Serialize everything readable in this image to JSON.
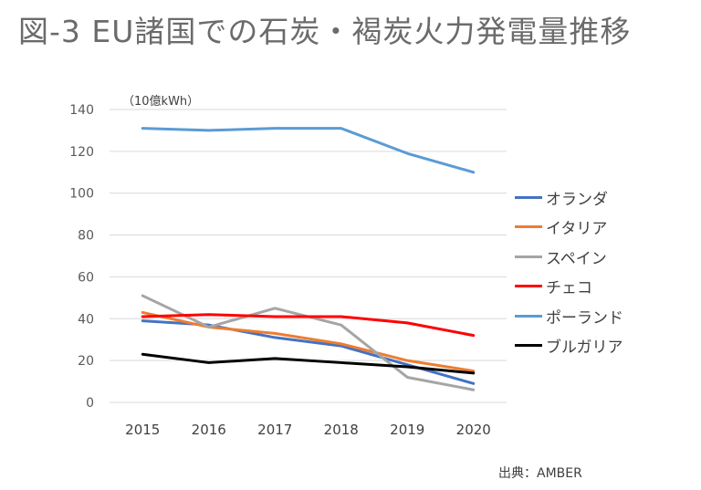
{
  "title": "図-3 EU諸国での石炭・褐炭火力発電量推移",
  "source": "出典：AMBER",
  "chart_data": {
    "type": "line",
    "categories": [
      "2015",
      "2016",
      "2017",
      "2018",
      "2019",
      "2020"
    ],
    "ylabel": "（10億kWh）",
    "ylim": [
      0,
      140
    ],
    "yticks": [
      "0",
      "20",
      "40",
      "60",
      "80",
      "100",
      "120",
      "140"
    ],
    "grid": true,
    "legend_position": "right",
    "series": [
      {
        "name": "オランダ",
        "color": "#4472c4",
        "values": [
          39,
          37,
          31,
          27,
          18,
          9
        ]
      },
      {
        "name": "イタリア",
        "color": "#ed7d31",
        "values": [
          43,
          36,
          33,
          28,
          20,
          15
        ]
      },
      {
        "name": "スペイン",
        "color": "#a5a5a5",
        "values": [
          51,
          36,
          45,
          37,
          12,
          6
        ]
      },
      {
        "name": "チェコ",
        "color": "#ff0000",
        "values": [
          41,
          42,
          41,
          41,
          38,
          32
        ]
      },
      {
        "name": "ポーランド",
        "color": "#5b9bd5",
        "values": [
          131,
          130,
          131,
          131,
          119,
          110
        ]
      },
      {
        "name": "ブルガリア",
        "color": "#000000",
        "values": [
          23,
          19,
          21,
          19,
          17,
          14
        ]
      }
    ]
  }
}
